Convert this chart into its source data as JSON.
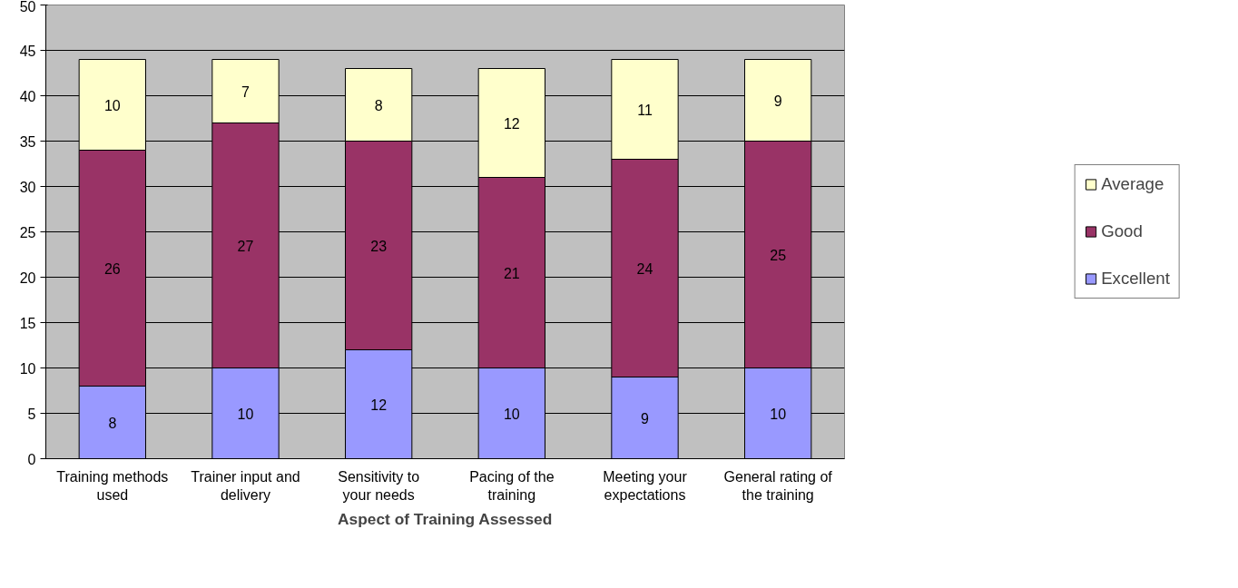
{
  "chart_data": {
    "type": "bar",
    "stacked": true,
    "xlabel": "Aspect of Training Assessed",
    "categories": [
      "Training methods used",
      "Trainer input and delivery",
      "Sensitivity to your needs",
      "Pacing of the training",
      "Meeting your expectations",
      "General rating of the training"
    ],
    "series": [
      {
        "name": "Excellent",
        "color": "#9999ff",
        "values": [
          8,
          10,
          12,
          10,
          9,
          10
        ]
      },
      {
        "name": "Good",
        "color": "#993366",
        "values": [
          26,
          27,
          23,
          21,
          24,
          25
        ]
      },
      {
        "name": "Average",
        "color": "#ffffcc",
        "values": [
          10,
          7,
          8,
          12,
          11,
          9
        ]
      }
    ],
    "ylim": [
      0,
      50
    ],
    "yticks": [
      0,
      5,
      10,
      15,
      20,
      25,
      30,
      35,
      40,
      45,
      50
    ],
    "grid": "y",
    "legend": "right",
    "data_labels": true
  }
}
